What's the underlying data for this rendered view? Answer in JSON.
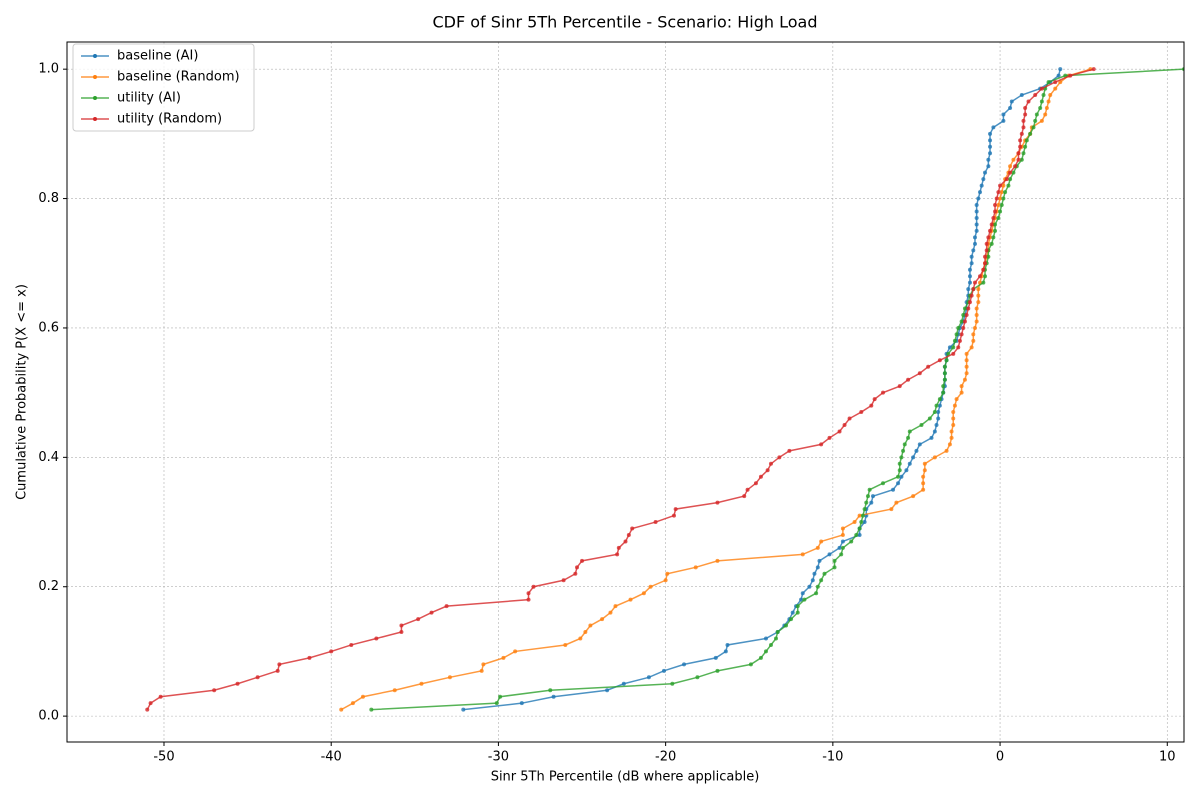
{
  "chart_data": {
    "type": "line",
    "title": "CDF of Sinr 5Th Percentile - Scenario: High Load",
    "x_label": "Sinr 5Th Percentile (dB where applicable)",
    "y_label": "Cumulative Probability P(X <= x)",
    "xlim": [
      -55.8,
      11.0
    ],
    "ylim": [
      -0.04,
      1.042
    ],
    "xticks": [
      -50,
      -40,
      -30,
      -20,
      -10,
      0,
      10
    ],
    "yticks": [
      {
        "value": 0,
        "label": "0.0"
      },
      0.2,
      0.4,
      0.6,
      0.8,
      {
        "value": 1,
        "label": "1.0"
      }
    ],
    "grid": true,
    "legend": "upper left",
    "series": [
      {
        "name": "baseline (AI)",
        "color": "#1f77b4",
        "x": [
          -32.1,
          -28.6,
          -26.7,
          -23.5,
          -22.5,
          -21.0,
          -20.1,
          -18.9,
          -17.0,
          -16.4,
          -16.3,
          -14.0,
          -13.3,
          -12.9,
          -12.6,
          -12.4,
          -12.2,
          -11.9,
          -11.8,
          -11.4,
          -11.2,
          -11.1,
          -10.9,
          -10.8,
          -10.2,
          -9.6,
          -9.4,
          -8.4,
          -8.4,
          -8.1,
          -8.0,
          -8.0,
          -7.7,
          -7.6,
          -6.4,
          -6.1,
          -5.9,
          -5.6,
          -5.4,
          -5.2,
          -5.0,
          -4.8,
          -4.1,
          -3.9,
          -3.8,
          -3.7,
          -3.7,
          -3.6,
          -3.5,
          -3.4,
          -3.3,
          -3.3,
          -3.3,
          -3.3,
          -3.2,
          -3.2,
          -3.0,
          -2.6,
          -2.5,
          -2.4,
          -2.2,
          -2.1,
          -2.0,
          -2.0,
          -1.9,
          -1.9,
          -1.8,
          -1.8,
          -1.8,
          -1.7,
          -1.7,
          -1.6,
          -1.5,
          -1.5,
          -1.4,
          -1.4,
          -1.4,
          -1.4,
          -1.4,
          -1.3,
          -1.2,
          -1.1,
          -1.0,
          -0.9,
          -0.7,
          -0.7,
          -0.6,
          -0.6,
          -0.6,
          -0.6,
          -0.4,
          0.2,
          0.2,
          0.6,
          0.7,
          1.3,
          2.4,
          3.0,
          3.5,
          3.6
        ],
        "values": [
          0.01,
          0.02,
          0.03,
          0.04,
          0.05,
          0.06,
          0.07,
          0.08,
          0.09,
          0.1,
          0.11,
          0.12,
          0.13,
          0.14,
          0.15,
          0.16,
          0.17,
          0.18,
          0.19,
          0.2,
          0.21,
          0.22,
          0.23,
          0.24,
          0.25,
          0.26,
          0.27,
          0.28,
          0.29,
          0.3,
          0.31,
          0.32,
          0.33,
          0.34,
          0.35,
          0.36,
          0.37,
          0.38,
          0.39,
          0.4,
          0.41,
          0.42,
          0.43,
          0.44,
          0.45,
          0.46,
          0.47,
          0.48,
          0.49,
          0.5,
          0.51,
          0.52,
          0.53,
          0.54,
          0.55,
          0.56,
          0.57,
          0.58,
          0.59,
          0.6,
          0.61,
          0.62,
          0.63,
          0.64,
          0.65,
          0.66,
          0.67,
          0.68,
          0.69,
          0.7,
          0.71,
          0.72,
          0.73,
          0.74,
          0.75,
          0.76,
          0.77,
          0.78,
          0.79,
          0.8,
          0.81,
          0.82,
          0.83,
          0.84,
          0.85,
          0.86,
          0.87,
          0.88,
          0.89,
          0.9,
          0.91,
          0.92,
          0.93,
          0.94,
          0.95,
          0.96,
          0.97,
          0.98,
          0.99,
          1.0
        ]
      },
      {
        "name": "baseline (Random)",
        "color": "#ff7f0e",
        "x": [
          -39.4,
          -38.7,
          -38.1,
          -36.2,
          -34.6,
          -32.9,
          -31.0,
          -30.9,
          -29.7,
          -29.0,
          -26.0,
          -25.1,
          -24.8,
          -24.5,
          -23.8,
          -23.3,
          -23.0,
          -22.1,
          -21.3,
          -20.9,
          -20.0,
          -19.9,
          -18.2,
          -16.9,
          -11.8,
          -10.9,
          -10.7,
          -9.4,
          -9.4,
          -8.7,
          -8.4,
          -6.5,
          -6.2,
          -5.2,
          -4.6,
          -4.6,
          -4.6,
          -4.5,
          -4.5,
          -3.9,
          -3.2,
          -3.0,
          -2.9,
          -2.9,
          -2.8,
          -2.8,
          -2.8,
          -2.7,
          -2.6,
          -2.3,
          -2.3,
          -2.1,
          -2.0,
          -2.0,
          -2.0,
          -2.0,
          -1.7,
          -1.6,
          -1.6,
          -1.5,
          -1.4,
          -1.4,
          -1.4,
          -1.3,
          -1.3,
          -1.3,
          -1.2,
          -1.1,
          -1.0,
          -0.9,
          -0.8,
          -0.7,
          -0.7,
          -0.6,
          -0.5,
          -0.4,
          -0.3,
          -0.2,
          -0.1,
          0.0,
          0.1,
          0.2,
          0.3,
          0.5,
          0.6,
          0.8,
          1.1,
          1.3,
          1.5,
          1.8,
          1.9,
          2.5,
          2.7,
          2.8,
          2.9,
          3.0,
          3.3,
          3.6,
          4.1,
          5.4
        ],
        "values": [
          0.01,
          0.02,
          0.03,
          0.04,
          0.05,
          0.06,
          0.07,
          0.08,
          0.09,
          0.1,
          0.11,
          0.12,
          0.13,
          0.14,
          0.15,
          0.16,
          0.17,
          0.18,
          0.19,
          0.2,
          0.21,
          0.22,
          0.23,
          0.24,
          0.25,
          0.26,
          0.27,
          0.28,
          0.29,
          0.3,
          0.31,
          0.32,
          0.33,
          0.34,
          0.35,
          0.36,
          0.37,
          0.38,
          0.39,
          0.4,
          0.41,
          0.42,
          0.43,
          0.44,
          0.45,
          0.46,
          0.47,
          0.48,
          0.49,
          0.5,
          0.51,
          0.52,
          0.53,
          0.54,
          0.55,
          0.56,
          0.57,
          0.58,
          0.59,
          0.6,
          0.61,
          0.62,
          0.63,
          0.64,
          0.65,
          0.66,
          0.67,
          0.68,
          0.69,
          0.7,
          0.71,
          0.72,
          0.73,
          0.74,
          0.75,
          0.76,
          0.77,
          0.78,
          0.79,
          0.8,
          0.81,
          0.82,
          0.83,
          0.84,
          0.85,
          0.86,
          0.87,
          0.88,
          0.89,
          0.9,
          0.91,
          0.92,
          0.93,
          0.94,
          0.95,
          0.96,
          0.97,
          0.98,
          0.99,
          1.0
        ]
      },
      {
        "name": "utility (AI)",
        "color": "#2ca02c",
        "x": [
          -37.6,
          -30.1,
          -29.9,
          -26.9,
          -19.6,
          -18.1,
          -16.9,
          -14.9,
          -14.3,
          -14.0,
          -13.7,
          -13.4,
          -13.3,
          -12.8,
          -12.5,
          -12.1,
          -12.1,
          -11.7,
          -11.0,
          -10.9,
          -10.7,
          -10.5,
          -9.9,
          -9.9,
          -9.5,
          -9.4,
          -8.9,
          -8.6,
          -8.4,
          -8.3,
          -8.2,
          -8.1,
          -8.0,
          -7.9,
          -7.8,
          -7.0,
          -6.1,
          -6.0,
          -6.0,
          -5.9,
          -5.8,
          -5.7,
          -5.5,
          -5.4,
          -4.7,
          -4.2,
          -3.9,
          -3.8,
          -3.6,
          -3.4,
          -3.4,
          -3.3,
          -3.3,
          -3.3,
          -3.2,
          -3.1,
          -2.8,
          -2.7,
          -2.6,
          -2.5,
          -2.3,
          -2.2,
          -2.1,
          -1.9,
          -1.8,
          -1.6,
          -1.0,
          -0.9,
          -0.9,
          -0.8,
          -0.7,
          -0.7,
          -0.5,
          -0.4,
          -0.3,
          -0.3,
          -0.1,
          0.0,
          0.1,
          0.2,
          0.3,
          0.5,
          0.6,
          0.8,
          1.0,
          1.3,
          1.4,
          1.5,
          1.6,
          1.8,
          2.0,
          2.1,
          2.2,
          2.4,
          2.5,
          2.6,
          2.7,
          2.9,
          3.9,
          11.0
        ],
        "values": [
          0.01,
          0.02,
          0.03,
          0.04,
          0.05,
          0.06,
          0.07,
          0.08,
          0.09,
          0.1,
          0.11,
          0.12,
          0.13,
          0.14,
          0.15,
          0.16,
          0.17,
          0.18,
          0.19,
          0.2,
          0.21,
          0.22,
          0.23,
          0.24,
          0.25,
          0.26,
          0.27,
          0.28,
          0.29,
          0.3,
          0.31,
          0.32,
          0.33,
          0.34,
          0.35,
          0.36,
          0.37,
          0.38,
          0.39,
          0.4,
          0.41,
          0.42,
          0.43,
          0.44,
          0.45,
          0.46,
          0.47,
          0.48,
          0.49,
          0.5,
          0.51,
          0.52,
          0.53,
          0.54,
          0.55,
          0.56,
          0.57,
          0.58,
          0.59,
          0.6,
          0.61,
          0.62,
          0.63,
          0.64,
          0.65,
          0.66,
          0.67,
          0.68,
          0.69,
          0.7,
          0.71,
          0.72,
          0.73,
          0.74,
          0.75,
          0.76,
          0.77,
          0.78,
          0.79,
          0.8,
          0.81,
          0.82,
          0.83,
          0.84,
          0.85,
          0.86,
          0.87,
          0.88,
          0.89,
          0.9,
          0.91,
          0.92,
          0.93,
          0.94,
          0.95,
          0.96,
          0.97,
          0.98,
          0.99,
          1.0
        ]
      },
      {
        "name": "utility (Random)",
        "color": "#d62728",
        "x": [
          -51.0,
          -50.8,
          -50.2,
          -47.0,
          -45.6,
          -44.4,
          -43.2,
          -43.1,
          -41.3,
          -40.0,
          -38.8,
          -37.3,
          -35.8,
          -35.8,
          -34.8,
          -34.0,
          -33.1,
          -28.2,
          -28.2,
          -27.9,
          -26.1,
          -25.4,
          -25.3,
          -25.0,
          -22.9,
          -22.8,
          -22.4,
          -22.2,
          -22.0,
          -20.6,
          -19.5,
          -19.4,
          -16.9,
          -15.3,
          -15.1,
          -14.6,
          -14.3,
          -13.9,
          -13.7,
          -13.2,
          -12.6,
          -10.7,
          -10.2,
          -9.6,
          -9.3,
          -9.0,
          -8.3,
          -7.7,
          -7.5,
          -7.0,
          -6.0,
          -5.5,
          -4.8,
          -4.3,
          -3.6,
          -2.8,
          -2.5,
          -2.4,
          -2.3,
          -2.2,
          -2.1,
          -2.0,
          -1.9,
          -1.8,
          -1.7,
          -1.6,
          -1.5,
          -1.2,
          -1.0,
          -0.9,
          -0.9,
          -0.8,
          -0.8,
          -0.7,
          -0.6,
          -0.5,
          -0.4,
          -0.3,
          -0.3,
          -0.2,
          -0.1,
          0.0,
          0.4,
          0.6,
          0.9,
          1.1,
          1.1,
          1.2,
          1.2,
          1.3,
          1.4,
          1.4,
          1.5,
          1.5,
          1.7,
          2.1,
          2.5,
          3.3,
          4.2,
          5.6
        ],
        "values": [
          0.01,
          0.02,
          0.03,
          0.04,
          0.05,
          0.06,
          0.07,
          0.08,
          0.09,
          0.1,
          0.11,
          0.12,
          0.13,
          0.14,
          0.15,
          0.16,
          0.17,
          0.18,
          0.19,
          0.2,
          0.21,
          0.22,
          0.23,
          0.24,
          0.25,
          0.26,
          0.27,
          0.28,
          0.29,
          0.3,
          0.31,
          0.32,
          0.33,
          0.34,
          0.35,
          0.36,
          0.37,
          0.38,
          0.39,
          0.4,
          0.41,
          0.42,
          0.43,
          0.44,
          0.45,
          0.46,
          0.47,
          0.48,
          0.49,
          0.5,
          0.51,
          0.52,
          0.53,
          0.54,
          0.55,
          0.56,
          0.57,
          0.58,
          0.59,
          0.6,
          0.61,
          0.62,
          0.63,
          0.64,
          0.65,
          0.66,
          0.67,
          0.68,
          0.69,
          0.7,
          0.71,
          0.72,
          0.73,
          0.74,
          0.75,
          0.76,
          0.77,
          0.78,
          0.79,
          0.8,
          0.81,
          0.82,
          0.83,
          0.84,
          0.85,
          0.86,
          0.87,
          0.88,
          0.89,
          0.9,
          0.91,
          0.92,
          0.93,
          0.94,
          0.95,
          0.96,
          0.97,
          0.98,
          0.99,
          1.0
        ]
      }
    ]
  }
}
